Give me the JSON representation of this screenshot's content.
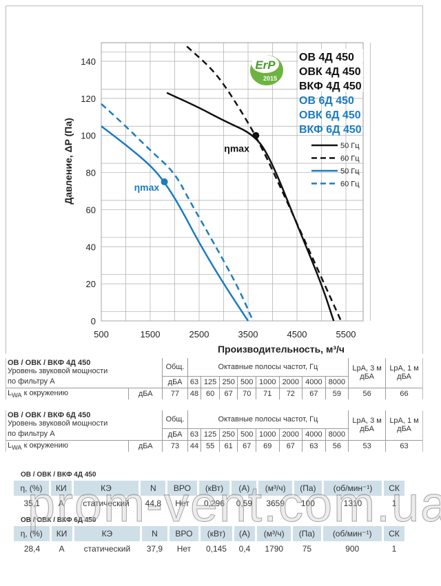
{
  "chart_data": {
    "type": "line",
    "xlabel": "Производительность, м³/ч",
    "ylabel": "Давление, ΔP (Па)",
    "xlim": [
      500,
      5900
    ],
    "ylim": [
      0,
      150
    ],
    "xticks": [
      500,
      1500,
      2500,
      3500,
      4500,
      5500
    ],
    "yticks": [
      0,
      20,
      40,
      60,
      80,
      100,
      120,
      140
    ],
    "grid": true,
    "legend_position": "top-right",
    "models_black": [
      "ОВ 4Д 450",
      "ОВК 4Д 450",
      "ВКФ 4Д 450"
    ],
    "models_blue": [
      "ОВ 6Д 450",
      "ОВК 6Д 450",
      "ВКФ 6Д 450"
    ],
    "badge": {
      "text": "ErP",
      "year": "2015"
    },
    "series": [
      {
        "name": "50 Гц",
        "group": "4Д",
        "color": "#111111",
        "dash": false,
        "x": [
          1840,
          2500,
          3000,
          3659,
          4000,
          4500,
          5000,
          5250
        ],
        "y": [
          123,
          115,
          108,
          100,
          85,
          52,
          20,
          0
        ]
      },
      {
        "name": "60 Гц",
        "group": "4Д",
        "color": "#111111",
        "dash": true,
        "x": [
          2250,
          2800,
          3200,
          3700,
          4200,
          4800,
          5400
        ],
        "y": [
          148,
          135,
          120,
          98,
          70,
          35,
          0
        ]
      },
      {
        "name": "50 Гц",
        "group": "6Д",
        "color": "#1a7cc1",
        "dash": false,
        "x": [
          500,
          1000,
          1500,
          1790,
          2100,
          2500,
          3000,
          3500
        ],
        "y": [
          105,
          95,
          84,
          75,
          62,
          42,
          20,
          0
        ]
      },
      {
        "name": "60 Гц",
        "group": "6Д",
        "color": "#1a7cc1",
        "dash": true,
        "x": [
          500,
          1000,
          1500,
          2000,
          2300,
          2800,
          3300,
          3600
        ],
        "y": [
          117,
          105,
          92,
          80,
          65,
          42,
          18,
          0
        ]
      }
    ],
    "annotations": [
      {
        "text": "ηmax",
        "x": 3659,
        "y": 100,
        "color": "#111111"
      },
      {
        "text": "ηmax",
        "x": 1790,
        "y": 75,
        "color": "#1a7cc1"
      }
    ]
  },
  "sound": [
    {
      "title": "ОВ / ОВК / ВКФ 4Д 450",
      "sub1": "Уровень звуковой мощности",
      "sub2": "по фильтру А",
      "total_h": "Общ.",
      "bands_h": "Октавные полосы частот, Гц",
      "unit": "дБА",
      "bands": [
        "63",
        "125",
        "250",
        "500",
        "1000",
        "2000",
        "4000",
        "8000"
      ],
      "lpa3_h": "LpA, 3 м",
      "lpa1_h": "LpA, 1 м",
      "row_label": "к окружению",
      "row_l": "L",
      "row_sub": "WA",
      "total": "77",
      "values": [
        "48",
        "60",
        "67",
        "70",
        "71",
        "72",
        "67",
        "59"
      ],
      "lpa3": "56",
      "lpa1": "66"
    },
    {
      "title": "ОВ / ОВК / ВКФ 6Д 450",
      "sub1": "Уровень звуковой мощности",
      "sub2": "по фильтру А",
      "total_h": "Общ.",
      "bands_h": "Октавные полосы частот, Гц",
      "unit": "дБА",
      "bands": [
        "63",
        "125",
        "250",
        "500",
        "1000",
        "2000",
        "4000",
        "8000"
      ],
      "lpa3_h": "LpA, 3 м",
      "lpa1_h": "LpA, 1 м",
      "row_label": "к окружению",
      "row_l": "L",
      "row_sub": "WA",
      "total": "73",
      "values": [
        "44",
        "55",
        "61",
        "67",
        "69",
        "67",
        "63",
        "56"
      ],
      "lpa3": "53",
      "lpa1": "63"
    }
  ],
  "perf_headers": [
    "η, (%)",
    "КИ",
    "КЭ",
    "N",
    "ВРО",
    "(кВт)",
    "(А)",
    "(м³/ч)",
    "(Па)",
    "(об/мин⁻¹)",
    "СК"
  ],
  "perf": [
    {
      "title": "ОВ / ОВК / ВКФ 4Д 450",
      "values": [
        "35,1",
        "A",
        "статический",
        "44,8",
        "Нет",
        "0,296",
        "0,59",
        "3659",
        "100",
        "1310",
        "1"
      ]
    },
    {
      "title": "ОВ / ОВК / ВКФ 6Д 450",
      "values": [
        "28,4",
        "A",
        "статический",
        "37,9",
        "Нет",
        "0,145",
        "0,4",
        "1790",
        "75",
        "900",
        "1"
      ]
    }
  ],
  "watermark": "prom-vent.com.ua"
}
